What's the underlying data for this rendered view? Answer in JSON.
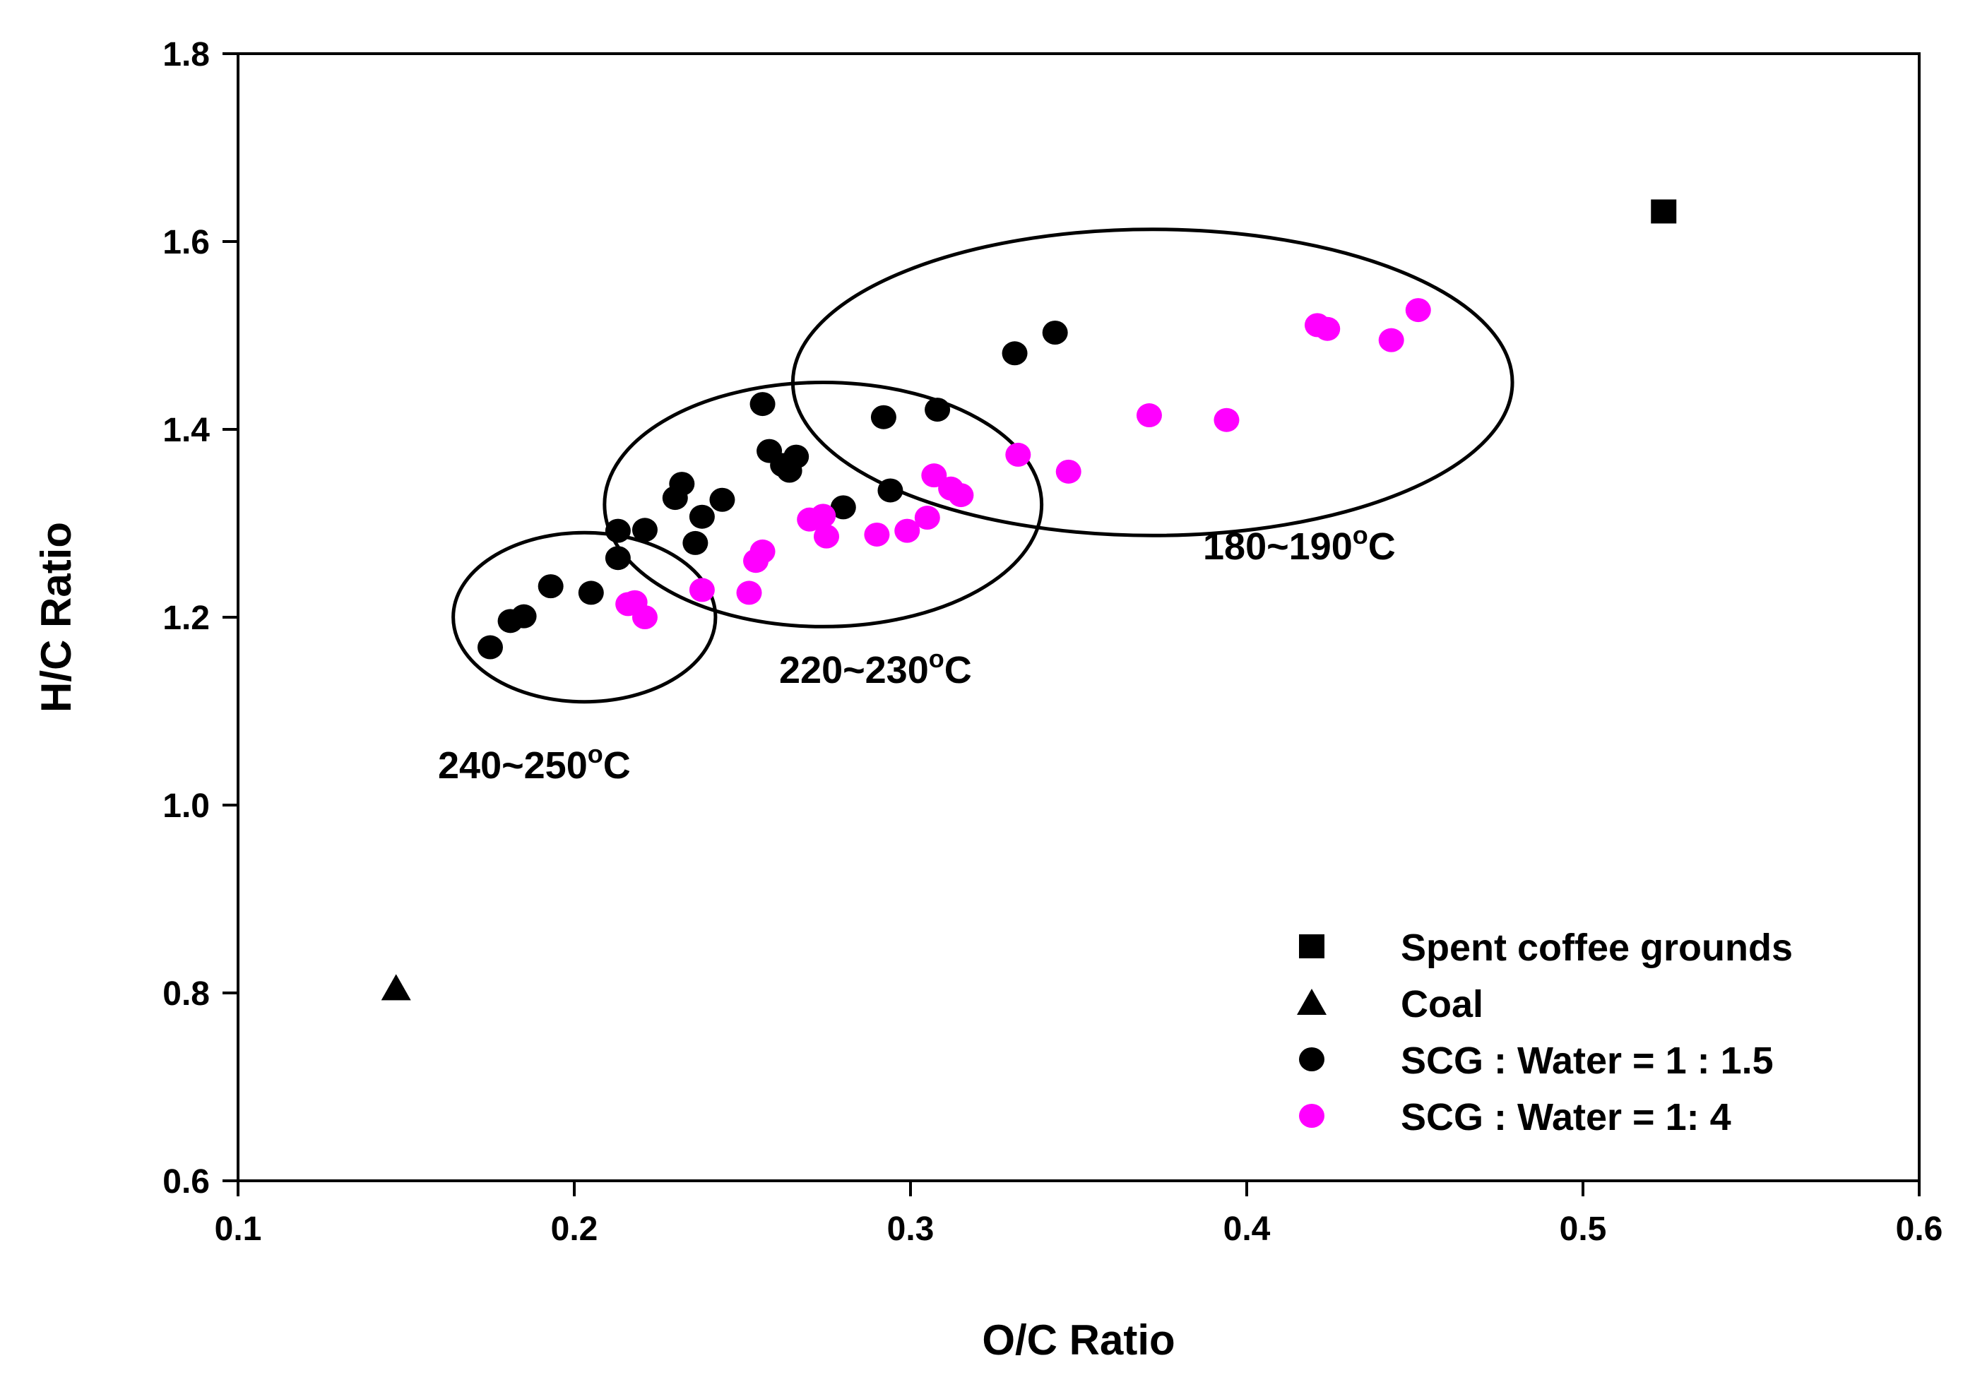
{
  "chart_data": {
    "type": "scatter",
    "title": "",
    "xlabel": "O/C Ratio",
    "ylabel": "H/C Ratio",
    "xlim": [
      0.1,
      0.6
    ],
    "ylim": [
      0.6,
      1.8
    ],
    "xticks": [
      0.1,
      0.2,
      0.3,
      0.4,
      0.5,
      0.6
    ],
    "xtick_labels": [
      "0.1",
      "0.2",
      "0.3",
      "0.4",
      "0.5",
      "0.6"
    ],
    "yticks": [
      0.6,
      0.8,
      1.0,
      1.2,
      1.4,
      1.6,
      1.8
    ],
    "ytick_labels": [
      "0.6",
      "0.8",
      "1.0",
      "1.2",
      "1.4",
      "1.6",
      "1.8"
    ],
    "grid": false,
    "legend_position": "bottom-right",
    "series": [
      {
        "name": "Spent coffee grounds",
        "marker": "square",
        "color": "#000000",
        "points": [
          [
            0.524,
            1.632
          ]
        ]
      },
      {
        "name": "Coal",
        "marker": "triangle",
        "color": "#000000",
        "points": [
          [
            0.147,
            0.805
          ]
        ]
      },
      {
        "name": "SCG : Water = 1 : 1.5",
        "marker": "circle",
        "color": "#000000",
        "points": [
          [
            0.175,
            1.168
          ],
          [
            0.181,
            1.196
          ],
          [
            0.185,
            1.201
          ],
          [
            0.193,
            1.233
          ],
          [
            0.205,
            1.226
          ],
          [
            0.213,
            1.292
          ],
          [
            0.213,
            1.263
          ],
          [
            0.221,
            1.293
          ],
          [
            0.23,
            1.327
          ],
          [
            0.232,
            1.342
          ],
          [
            0.236,
            1.279
          ],
          [
            0.238,
            1.307
          ],
          [
            0.244,
            1.325
          ],
          [
            0.256,
            1.427
          ],
          [
            0.258,
            1.377
          ],
          [
            0.262,
            1.362
          ],
          [
            0.264,
            1.356
          ],
          [
            0.266,
            1.371
          ],
          [
            0.28,
            1.317
          ],
          [
            0.292,
            1.413
          ],
          [
            0.294,
            1.335
          ],
          [
            0.308,
            1.421
          ],
          [
            0.331,
            1.481
          ],
          [
            0.343,
            1.503
          ]
        ]
      },
      {
        "name": "SCG : Water = 1: 4",
        "marker": "circle",
        "color": "#ff00ff",
        "points": [
          [
            0.216,
            1.214
          ],
          [
            0.218,
            1.216
          ],
          [
            0.221,
            1.2
          ],
          [
            0.238,
            1.229
          ],
          [
            0.252,
            1.226
          ],
          [
            0.254,
            1.26
          ],
          [
            0.256,
            1.27
          ],
          [
            0.27,
            1.304
          ],
          [
            0.274,
            1.308
          ],
          [
            0.275,
            1.286
          ],
          [
            0.29,
            1.288
          ],
          [
            0.299,
            1.292
          ],
          [
            0.305,
            1.306
          ],
          [
            0.307,
            1.351
          ],
          [
            0.312,
            1.337
          ],
          [
            0.315,
            1.33
          ],
          [
            0.332,
            1.373
          ],
          [
            0.347,
            1.355
          ],
          [
            0.371,
            1.415
          ],
          [
            0.394,
            1.41
          ],
          [
            0.421,
            1.511
          ],
          [
            0.424,
            1.507
          ],
          [
            0.443,
            1.495
          ],
          [
            0.451,
            1.527
          ]
        ]
      }
    ],
    "regions": [
      {
        "label": "240~250",
        "unit": "C",
        "cx": 0.203,
        "cy": 1.2,
        "rx": 0.039,
        "ry": 0.09
      },
      {
        "label": "220~230",
        "unit": "C",
        "cx": 0.274,
        "cy": 1.32,
        "rx": 0.065,
        "ry": 0.13
      },
      {
        "label": "180~190",
        "unit": "C",
        "cx": 0.372,
        "cy": 1.45,
        "rx": 0.107,
        "ry": 0.163
      }
    ]
  }
}
